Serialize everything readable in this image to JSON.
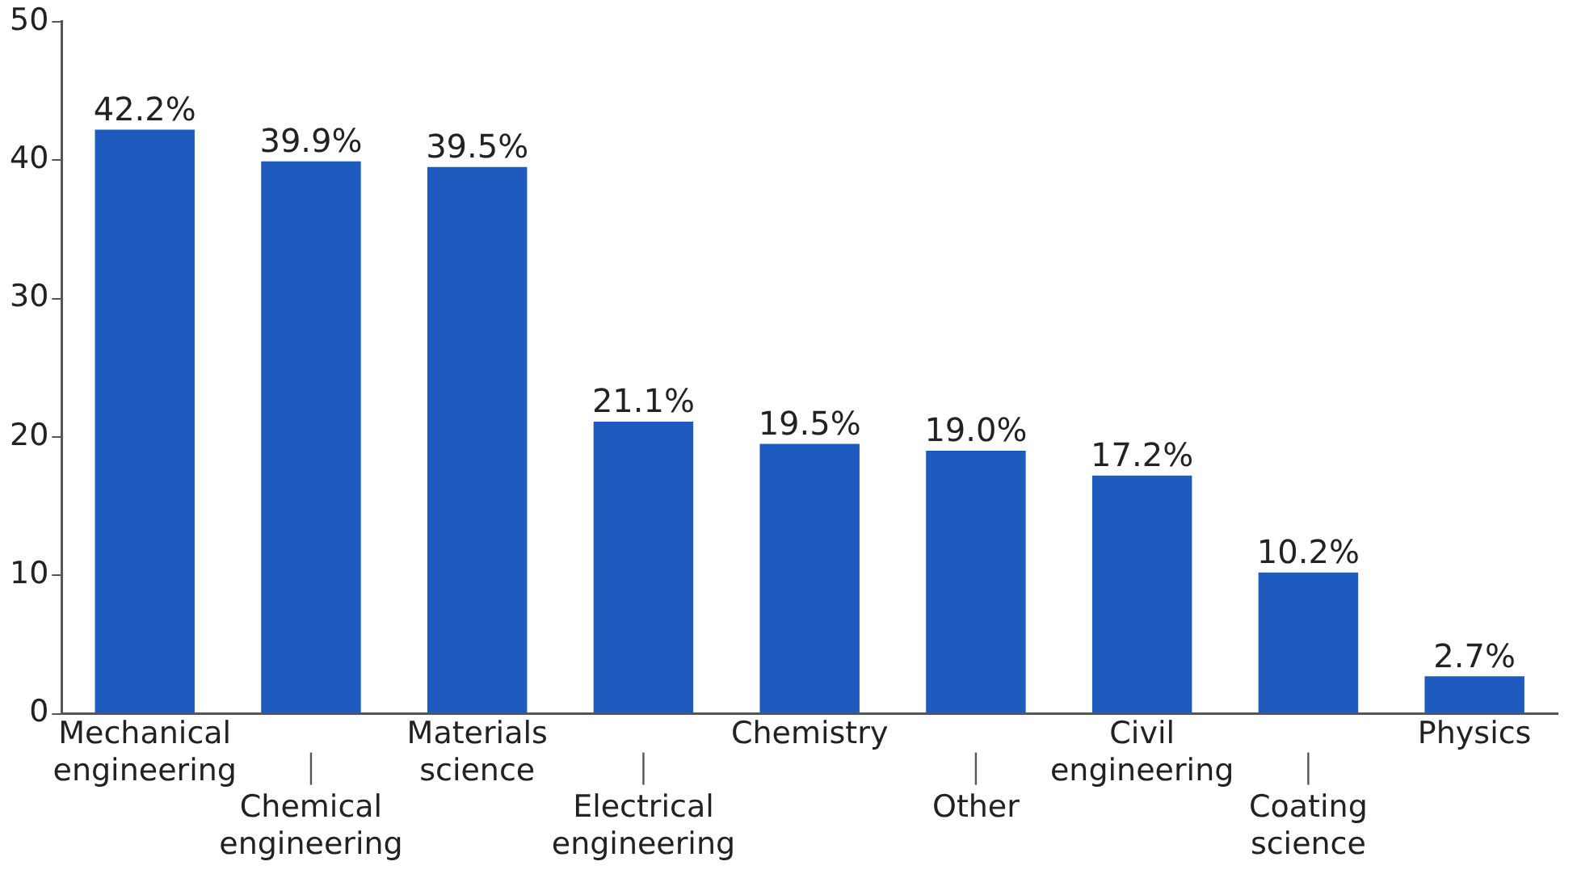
{
  "chart_data": {
    "type": "bar",
    "categories": [
      "Mechanical engineering",
      "Chemical engineering",
      "Materials science",
      "Electrical engineering",
      "Chemistry",
      "Other",
      "Civil engineering",
      "Coating science",
      "Physics"
    ],
    "values": [
      42.2,
      39.9,
      39.5,
      21.1,
      19.5,
      19.0,
      17.2,
      10.2,
      2.7
    ],
    "value_labels": [
      "42.2%",
      "39.9%",
      "39.5%",
      "21.1%",
      "19.5%",
      "19.0%",
      "17.2%",
      "10.2%",
      "2.7%"
    ],
    "color": "#1f5bbf",
    "ylim": [
      0,
      50
    ],
    "yticks": [
      0,
      10,
      20,
      30,
      40,
      50
    ],
    "grid": false,
    "legend": false
  }
}
